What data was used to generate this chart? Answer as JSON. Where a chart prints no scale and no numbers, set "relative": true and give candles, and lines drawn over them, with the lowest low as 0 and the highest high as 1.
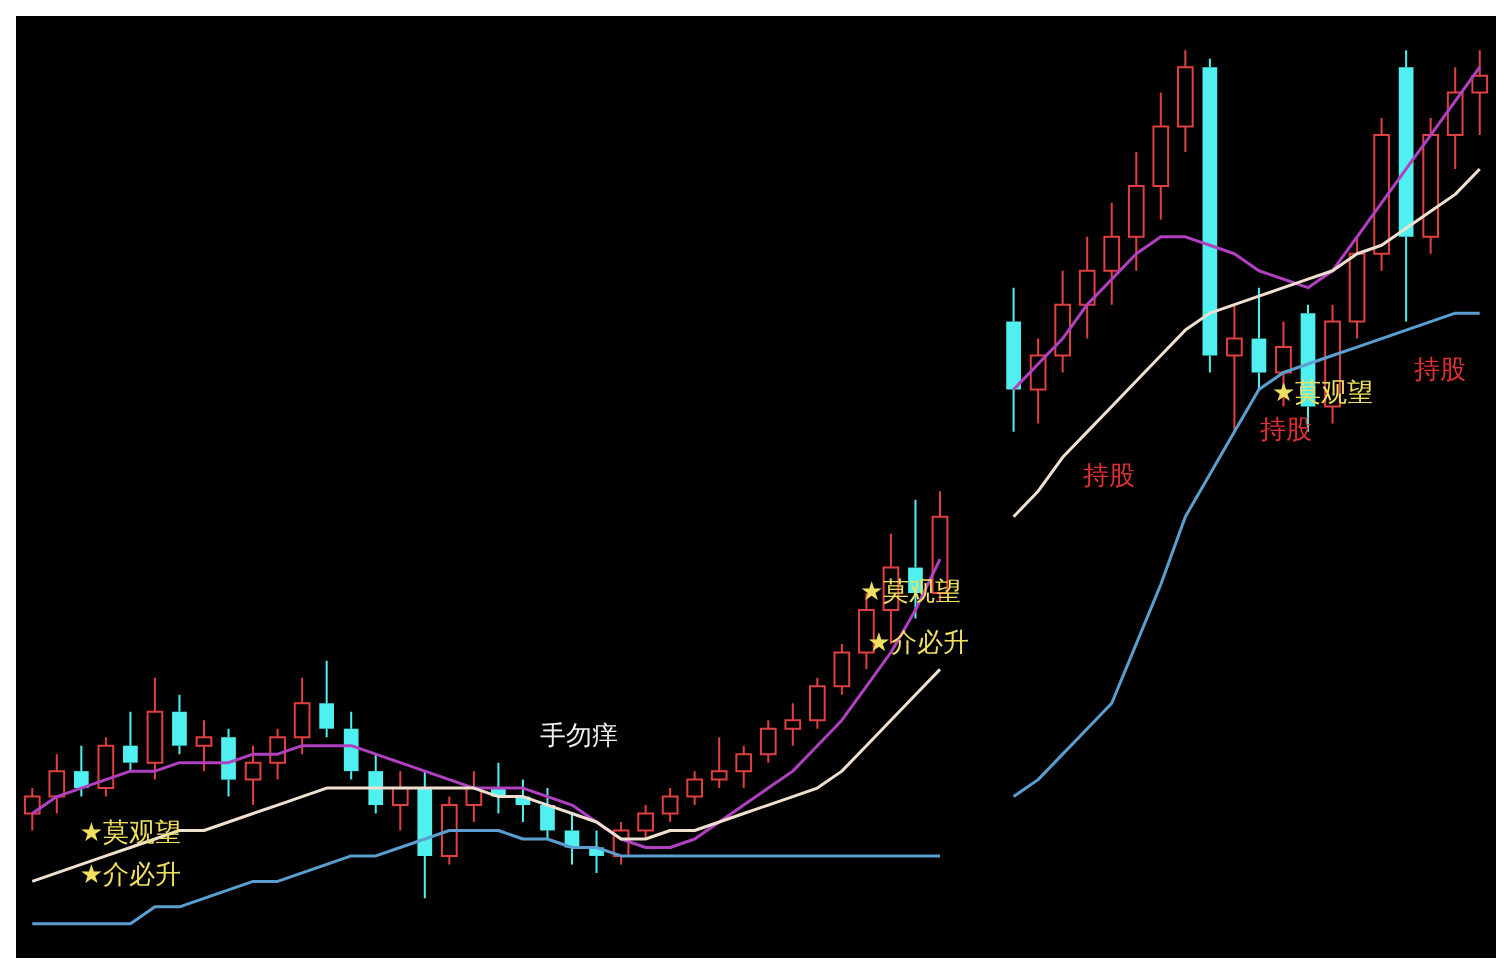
{
  "chart_data": {
    "type": "candlestick",
    "relative": true,
    "categories": [
      null,
      null,
      null,
      null,
      null,
      null,
      null,
      null,
      null,
      null,
      null,
      null,
      null,
      null,
      null,
      null,
      null,
      null,
      null,
      null,
      null,
      null,
      null,
      null,
      null,
      null,
      null,
      null,
      null,
      null,
      null,
      null,
      null,
      null,
      null,
      null,
      null,
      null,
      null,
      null,
      null,
      null,
      null,
      null,
      null,
      null,
      null,
      null,
      null,
      null,
      null,
      null,
      null,
      null,
      null,
      null,
      null,
      null,
      null,
      null
    ],
    "ohlc": [
      [
        0.1,
        0.13,
        0.08,
        0.12
      ],
      [
        0.12,
        0.17,
        0.1,
        0.15
      ],
      [
        0.15,
        0.18,
        0.12,
        0.13
      ],
      [
        0.13,
        0.19,
        0.12,
        0.18
      ],
      [
        0.18,
        0.22,
        0.15,
        0.16
      ],
      [
        0.16,
        0.26,
        0.14,
        0.22
      ],
      [
        0.22,
        0.24,
        0.17,
        0.18
      ],
      [
        0.18,
        0.21,
        0.15,
        0.19
      ],
      [
        0.19,
        0.2,
        0.12,
        0.14
      ],
      [
        0.14,
        0.18,
        0.11,
        0.16
      ],
      [
        0.16,
        0.2,
        0.14,
        0.19
      ],
      [
        0.19,
        0.26,
        0.17,
        0.23
      ],
      [
        0.23,
        0.28,
        0.19,
        0.2
      ],
      [
        0.2,
        0.22,
        0.14,
        0.15
      ],
      [
        0.15,
        0.17,
        0.1,
        0.11
      ],
      [
        0.11,
        0.15,
        0.08,
        0.13
      ],
      [
        0.13,
        0.15,
        0,
        0.05
      ],
      [
        0.05,
        0.12,
        0.04,
        0.11
      ],
      [
        0.11,
        0.15,
        0.09,
        0.13
      ],
      [
        0.13,
        0.16,
        0.1,
        0.12
      ],
      [
        0.12,
        0.14,
        0.09,
        0.11
      ],
      [
        0.11,
        0.13,
        0.07,
        0.08
      ],
      [
        0.08,
        0.1,
        0.04,
        0.06
      ],
      [
        0.06,
        0.08,
        0.03,
        0.05
      ],
      [
        0.05,
        0.09,
        0.04,
        0.08
      ],
      [
        0.08,
        0.11,
        0.07,
        0.1
      ],
      [
        0.1,
        0.13,
        0.09,
        0.12
      ],
      [
        0.12,
        0.15,
        0.11,
        0.14
      ],
      [
        0.14,
        0.19,
        0.13,
        0.15
      ],
      [
        0.15,
        0.18,
        0.13,
        0.17
      ],
      [
        0.17,
        0.21,
        0.16,
        0.2
      ],
      [
        0.2,
        0.23,
        0.18,
        0.21
      ],
      [
        0.21,
        0.26,
        0.2,
        0.25
      ],
      [
        0.25,
        0.3,
        0.24,
        0.29
      ],
      [
        0.29,
        0.36,
        0.27,
        0.34
      ],
      [
        0.34,
        0.43,
        0.3,
        0.39
      ],
      [
        0.39,
        0.47,
        0.33,
        0.36
      ],
      [
        0.36,
        0.48,
        0.35,
        0.45
      ],
      null,
      null,
      [
        0.68,
        0.72,
        0.55,
        0.6
      ],
      [
        0.6,
        0.66,
        0.56,
        0.64
      ],
      [
        0.64,
        0.74,
        0.62,
        0.7
      ],
      [
        0.7,
        0.78,
        0.66,
        0.74
      ],
      [
        0.74,
        0.82,
        0.7,
        0.78
      ],
      [
        0.78,
        0.88,
        0.74,
        0.84
      ],
      [
        0.84,
        0.95,
        0.8,
        0.91
      ],
      [
        0.91,
        1.0,
        0.88,
        0.98
      ],
      [
        0.98,
        0.99,
        0.62,
        0.64
      ],
      [
        0.64,
        0.7,
        0.55,
        0.66
      ],
      [
        0.66,
        0.72,
        0.6,
        0.62
      ],
      [
        0.62,
        0.68,
        0.58,
        0.65
      ],
      [
        0.69,
        0.7,
        0.55,
        0.58
      ],
      [
        0.58,
        0.7,
        0.56,
        0.68
      ],
      [
        0.68,
        0.78,
        0.66,
        0.76
      ],
      [
        0.76,
        0.92,
        0.74,
        0.9
      ],
      [
        0.98,
        1.0,
        0.68,
        0.78
      ],
      [
        0.78,
        0.92,
        0.76,
        0.9
      ],
      [
        0.9,
        0.98,
        0.86,
        0.95
      ],
      [
        0.95,
        1.0,
        0.9,
        0.97
      ]
    ],
    "colors": [
      "#e04040",
      "#e04040",
      "#50f0f0",
      "#e04040",
      "#50f0f0",
      "#e04040",
      "#50f0f0",
      "#e04040",
      "#50f0f0",
      "#e04040",
      "#e04040",
      "#e04040",
      "#50f0f0",
      "#50f0f0",
      "#50f0f0",
      "#e04040",
      "#50f0f0",
      "#e04040",
      "#e04040",
      "#50f0f0",
      "#50f0f0",
      "#50f0f0",
      "#50f0f0",
      "#50f0f0",
      "#e04040",
      "#e04040",
      "#e04040",
      "#e04040",
      "#e04040",
      "#e04040",
      "#e04040",
      "#e04040",
      "#e04040",
      "#e04040",
      "#e04040",
      "#e04040",
      "#50f0f0",
      "#e04040",
      null,
      null,
      "#50f0f0",
      "#e04040",
      "#e04040",
      "#e04040",
      "#e04040",
      "#e04040",
      "#e04040",
      "#e04040",
      "#50f0f0",
      "#e04040",
      "#50f0f0",
      "#e04040",
      "#50f0f0",
      "#e04040",
      "#e04040",
      "#e04040",
      "#50f0f0",
      "#e04040",
      "#e04040",
      "#e04040"
    ],
    "series": [
      {
        "type": "line",
        "color": "#f0e0d0",
        "values": [
          0.02,
          0.03,
          0.04,
          0.05,
          0.06,
          0.07,
          0.08,
          0.08,
          0.09,
          0.1,
          0.11,
          0.12,
          0.13,
          0.13,
          0.13,
          0.13,
          0.13,
          0.13,
          0.13,
          0.12,
          0.12,
          0.11,
          0.1,
          0.09,
          0.07,
          0.07,
          0.08,
          0.08,
          0.09,
          0.1,
          0.11,
          0.12,
          0.13,
          0.15,
          0.18,
          0.21,
          0.24,
          0.27,
          null,
          null,
          0.45,
          0.48,
          0.52,
          0.55,
          0.58,
          0.61,
          0.64,
          0.67,
          0.69,
          0.7,
          0.71,
          0.72,
          0.73,
          0.74,
          0.76,
          0.77,
          0.79,
          0.81,
          0.83,
          0.86
        ]
      },
      {
        "type": "line",
        "color": "#b040c0",
        "values": [
          0.1,
          0.12,
          0.13,
          0.14,
          0.15,
          0.15,
          0.16,
          0.16,
          0.16,
          0.17,
          0.17,
          0.18,
          0.18,
          0.18,
          0.17,
          0.16,
          0.15,
          0.14,
          0.13,
          0.13,
          0.13,
          0.12,
          0.11,
          0.09,
          0.07,
          0.06,
          0.06,
          0.07,
          0.09,
          0.11,
          0.13,
          0.15,
          0.18,
          0.21,
          0.25,
          0.29,
          0.34,
          0.4,
          null,
          null,
          0.6,
          0.63,
          0.66,
          0.7,
          0.73,
          0.76,
          0.78,
          0.78,
          0.77,
          0.76,
          0.74,
          0.73,
          0.72,
          0.74,
          0.78,
          0.82,
          0.86,
          0.9,
          0.94,
          0.98
        ]
      },
      {
        "type": "line",
        "color": "#5a9fd0",
        "values": [
          -0.03,
          -0.03,
          -0.03,
          -0.03,
          -0.03,
          -0.01,
          -0.01,
          0,
          0.01,
          0.02,
          0.02,
          0.03,
          0.04,
          0.05,
          0.05,
          0.06,
          0.07,
          0.08,
          0.08,
          0.08,
          0.07,
          0.07,
          0.06,
          0.06,
          0.05,
          0.05,
          0.05,
          0.05,
          0.05,
          0.05,
          0.05,
          0.05,
          0.05,
          0.05,
          0.05,
          0.05,
          0.05,
          0.05,
          null,
          null,
          0.12,
          0.14,
          0.17,
          0.2,
          0.23,
          0.3,
          0.37,
          0.45,
          0.5,
          0.55,
          0.6,
          0.62,
          0.63,
          0.64,
          0.65,
          0.66,
          0.67,
          0.68,
          0.69,
          0.69
        ]
      }
    ],
    "annotations": [
      "★莫观望",
      "★介必升",
      "手勿痒",
      "★莫观望",
      "★介必升",
      "持股",
      "★莫观望",
      "持股",
      "持股"
    ],
    "legend": false,
    "marker": "none",
    "line_style": "solid"
  }
}
